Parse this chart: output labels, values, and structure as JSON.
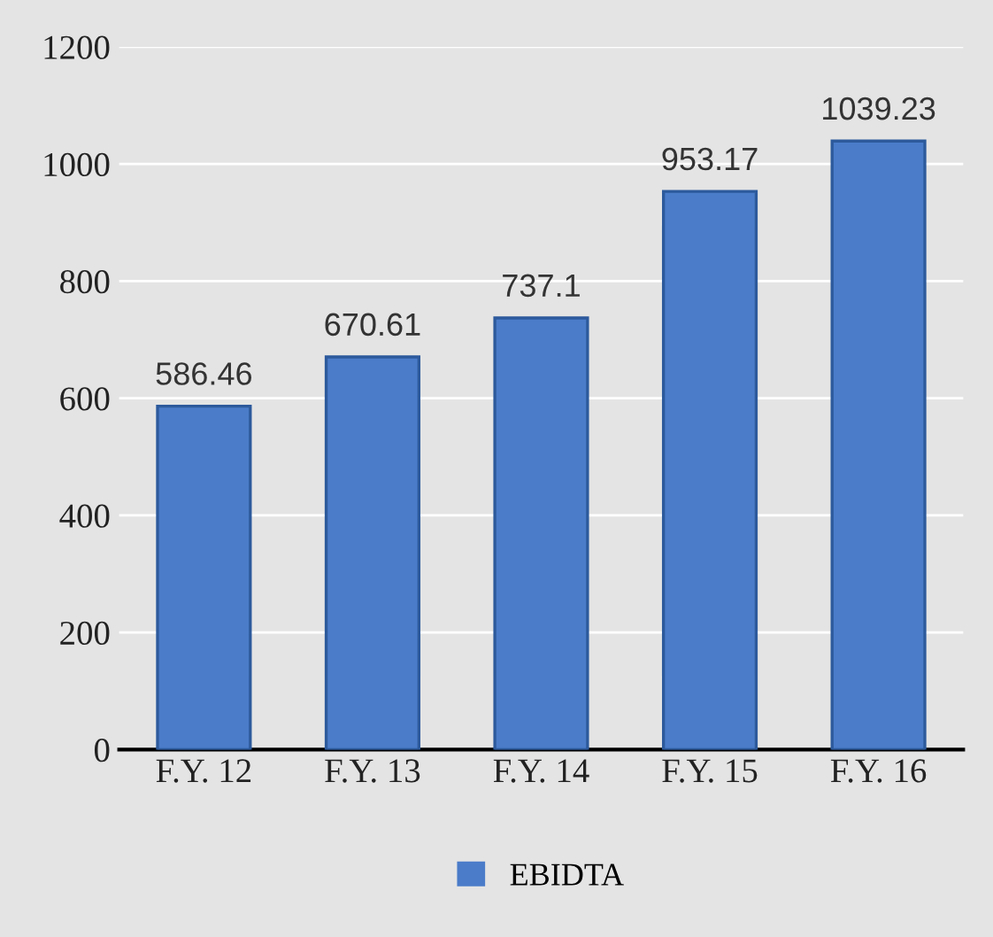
{
  "chart_data": {
    "type": "bar",
    "categories": [
      "F.Y. 12",
      "F.Y. 13",
      "F.Y. 14",
      "F.Y. 15",
      "F.Y. 16"
    ],
    "series": [
      {
        "name": "EBIDTA",
        "color": "#4a7cc9",
        "values": [
          586.46,
          670.61,
          737.1,
          953.17,
          1039.23
        ]
      }
    ],
    "ylim": [
      0,
      1200
    ],
    "yticks": [
      0,
      200,
      400,
      600,
      800,
      1000,
      1200
    ],
    "grid": "y",
    "data_labels": true,
    "legend": "bottom"
  }
}
